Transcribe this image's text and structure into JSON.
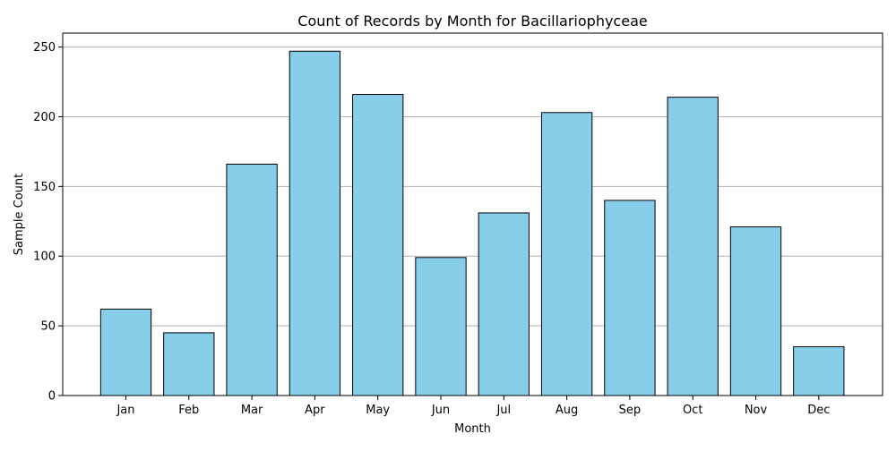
{
  "chart_data": {
    "type": "bar",
    "title": "Count of Records by Month for Bacillariophyceae",
    "xlabel": "Month",
    "ylabel": "Sample Count",
    "categories": [
      "Jan",
      "Feb",
      "Mar",
      "Apr",
      "May",
      "Jun",
      "Jul",
      "Aug",
      "Sep",
      "Oct",
      "Nov",
      "Dec"
    ],
    "values": [
      62,
      45,
      166,
      247,
      216,
      99,
      131,
      203,
      140,
      214,
      121,
      35
    ],
    "ylim": [
      0,
      260
    ],
    "yticks": [
      0,
      50,
      100,
      150,
      200,
      250
    ],
    "grid": "y-axis only",
    "legend": "none",
    "colors": {
      "bar_fill": "#87ceeb",
      "bar_edge": "#000000",
      "grid": "#b0b0b0"
    }
  }
}
